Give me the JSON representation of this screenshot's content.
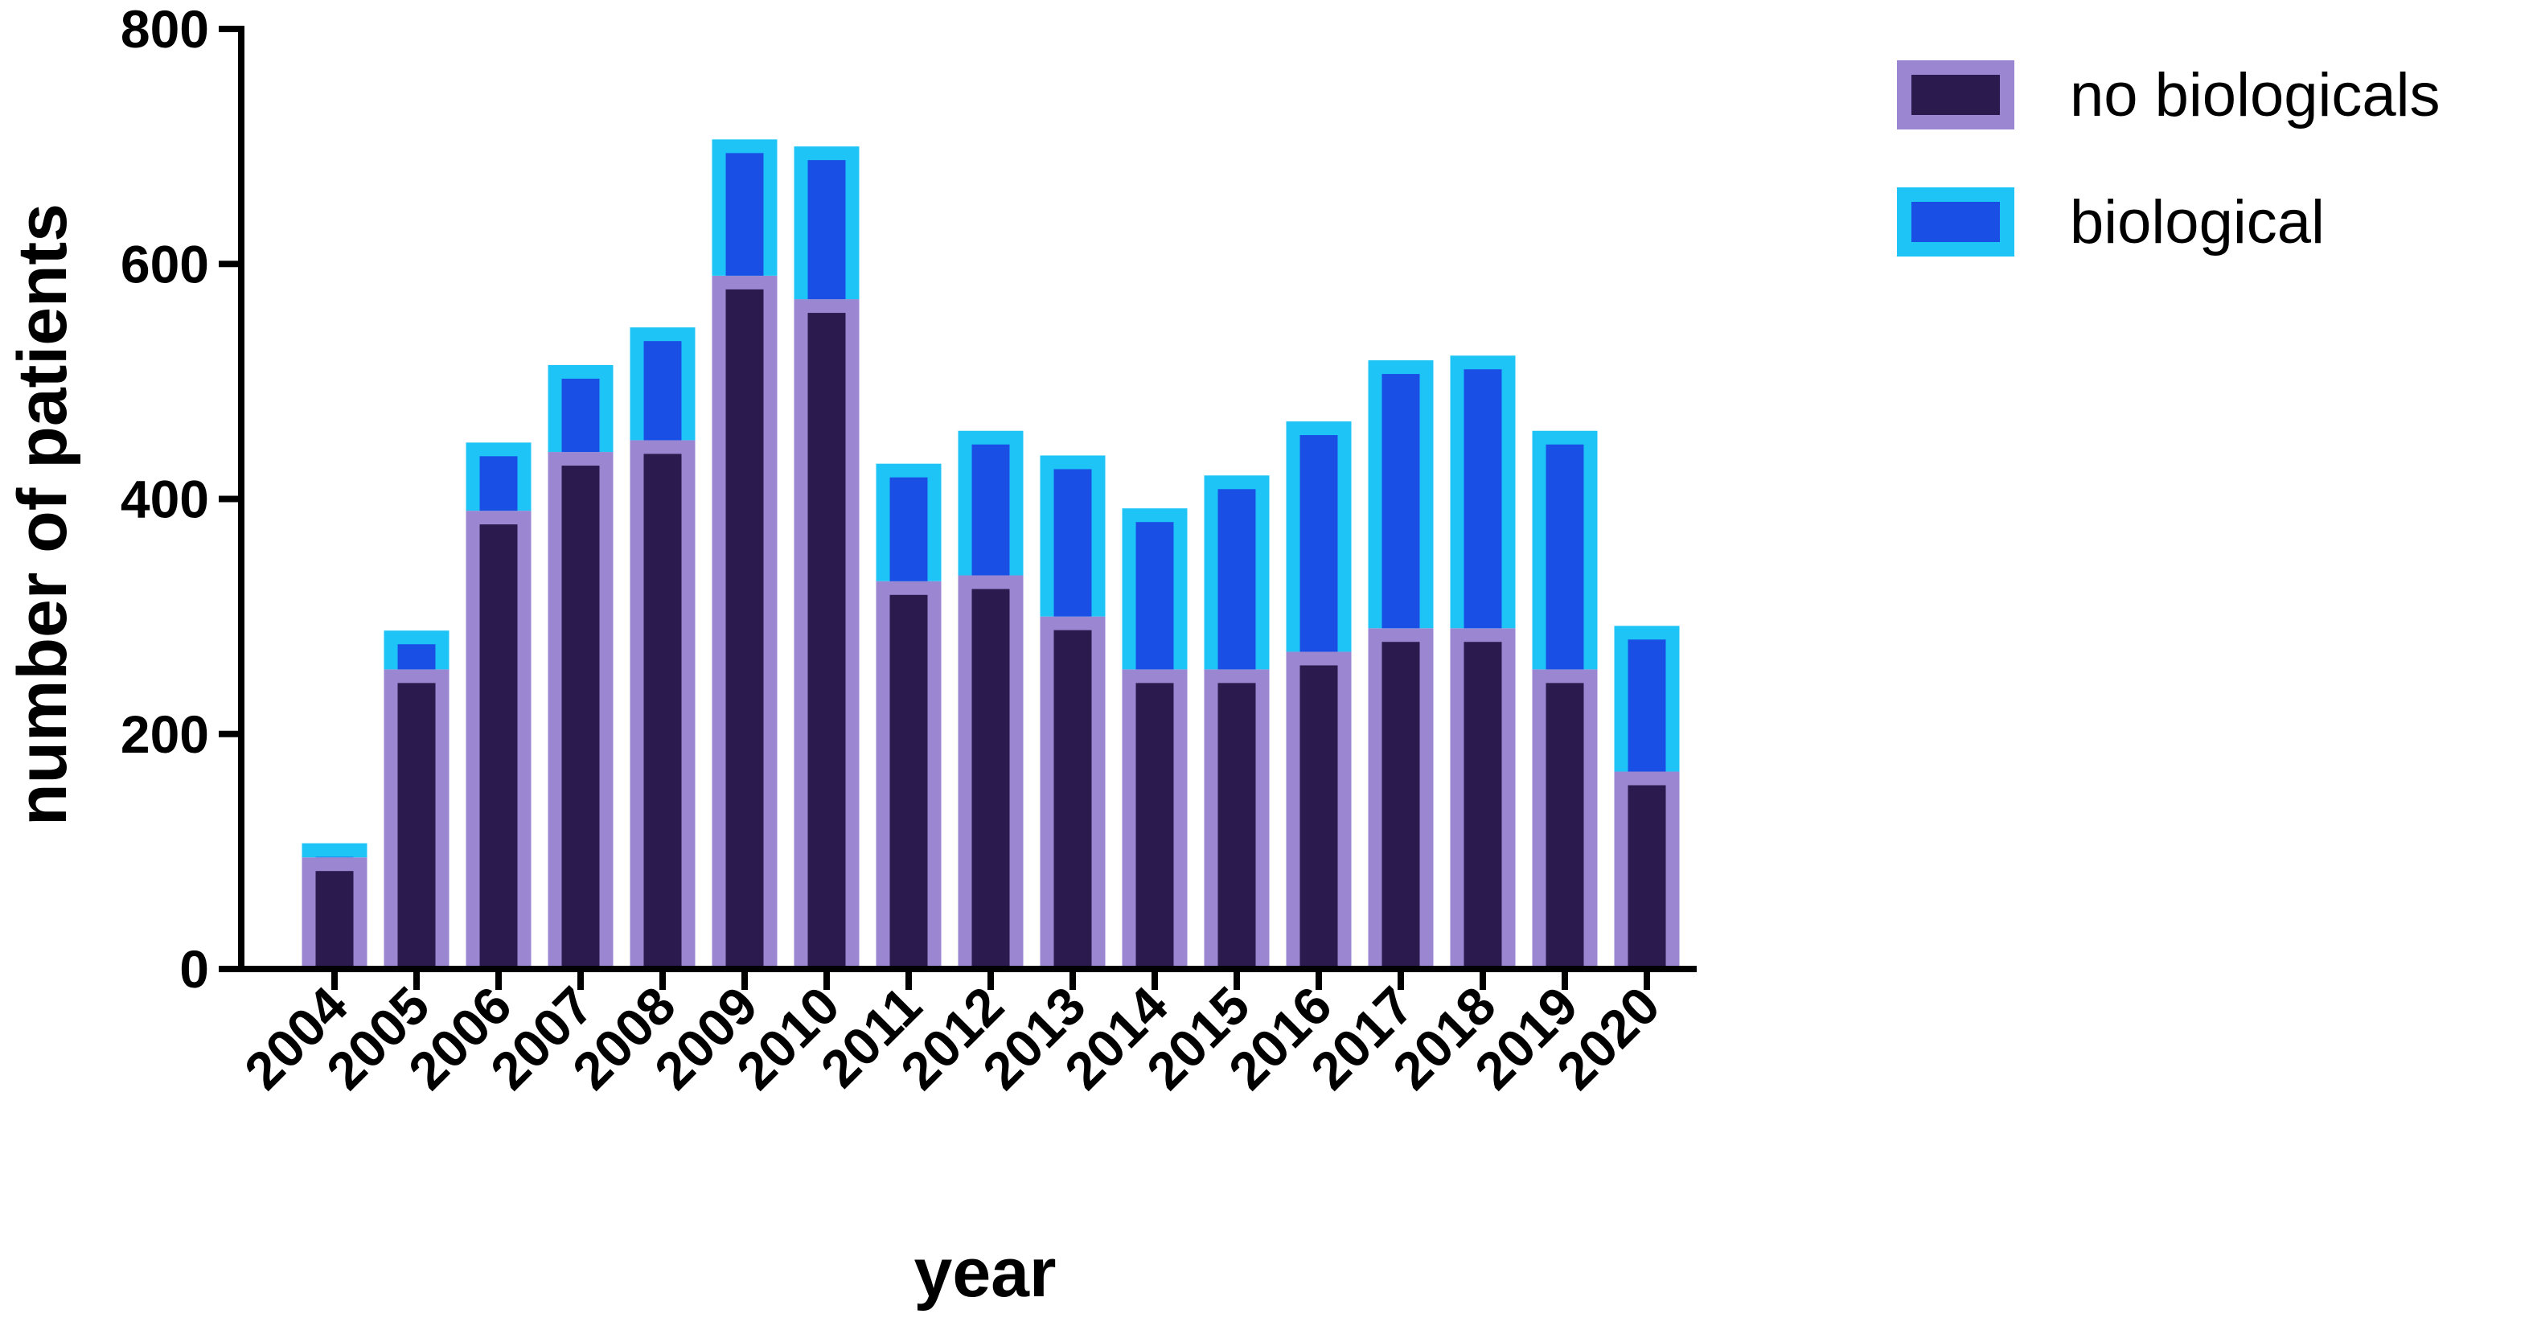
{
  "chart_data": {
    "type": "bar",
    "stacked": true,
    "categories": [
      "2004",
      "2005",
      "2006",
      "2007",
      "2008",
      "2009",
      "2010",
      "2011",
      "2012",
      "2013",
      "2014",
      "2015",
      "2016",
      "2017",
      "2018",
      "2019",
      "2020"
    ],
    "series": [
      {
        "name": "no biologicals",
        "fill": "#2b1a4e",
        "edge": "#9b87d1",
        "values": [
          95,
          255,
          390,
          440,
          450,
          590,
          570,
          330,
          335,
          300,
          255,
          255,
          270,
          290,
          290,
          255,
          168
        ]
      },
      {
        "name": "biological",
        "fill": "#1a4fe6",
        "edge": "#1ec4f5",
        "values": [
          12,
          33,
          58,
          74,
          96,
          116,
          130,
          100,
          123,
          137,
          137,
          165,
          196,
          228,
          232,
          203,
          124
        ]
      }
    ],
    "xlabel": "year",
    "ylabel": "number of patients",
    "ylim": [
      0,
      800
    ],
    "yticks": [
      0,
      200,
      400,
      600,
      800
    ],
    "grid": false,
    "legend": "top-right"
  }
}
